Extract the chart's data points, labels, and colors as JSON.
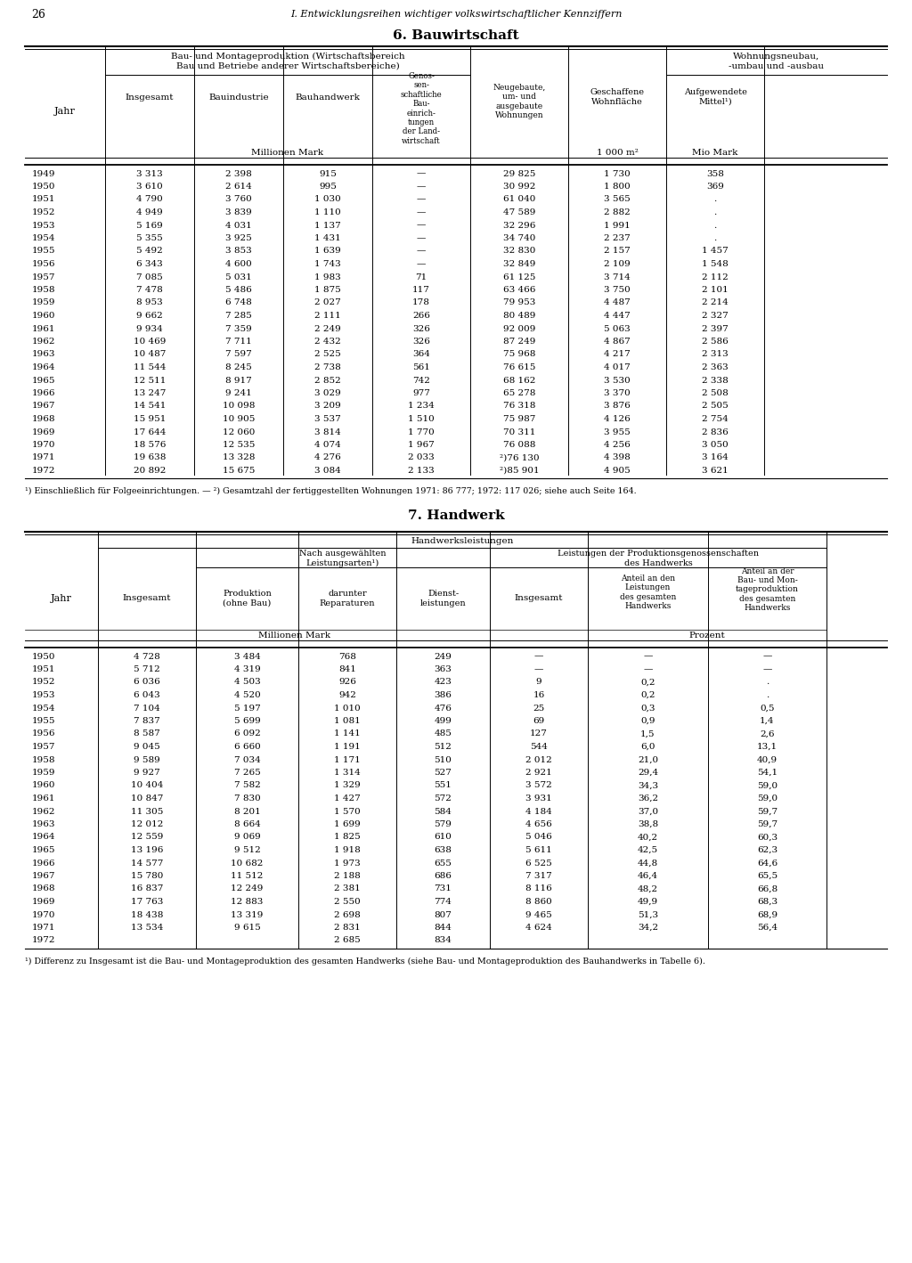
{
  "page_number": "26",
  "header_text": "I. Entwicklungsreihen wichtiger volkswirtschaftlicher Kennziffern",
  "section6_title": "6. Bauwirtschaft",
  "section7_title": "7. Handwerk",
  "bau_footnote": "¹) Einschließlich für Folgeeinrichtungen. — ²) Gesamtzahl der fertiggestellten Wohnungen 1971: 86 777; 1972: 117 026; siehe auch Seite 164.",
  "bau_data": [
    [
      "1949",
      "3 313",
      "2 398",
      "915",
      "—",
      "29 825",
      "1 730",
      "358"
    ],
    [
      "1950",
      "3 610",
      "2 614",
      "995",
      "—",
      "30 992",
      "1 800",
      "369"
    ],
    [
      "1951",
      "4 790",
      "3 760",
      "1 030",
      "—",
      "61 040",
      "3 565",
      "."
    ],
    [
      "1952",
      "4 949",
      "3 839",
      "1 110",
      "—",
      "47 589",
      "2 882",
      "."
    ],
    [
      "1953",
      "5 169",
      "4 031",
      "1 137",
      "—",
      "32 296",
      "1 991",
      "."
    ],
    [
      "1954",
      "5 355",
      "3 925",
      "1 431",
      "—",
      "34 740",
      "2 237",
      "."
    ],
    [
      "1955",
      "5 492",
      "3 853",
      "1 639",
      "—",
      "32 830",
      "2 157",
      "1 457"
    ],
    [
      "1956",
      "6 343",
      "4 600",
      "1 743",
      "—",
      "32 849",
      "2 109",
      "1 548"
    ],
    [
      "1957",
      "7 085",
      "5 031",
      "1 983",
      "71",
      "61 125",
      "3 714",
      "2 112"
    ],
    [
      "1958",
      "7 478",
      "5 486",
      "1 875",
      "117",
      "63 466",
      "3 750",
      "2 101"
    ],
    [
      "1959",
      "8 953",
      "6 748",
      "2 027",
      "178",
      "79 953",
      "4 487",
      "2 214"
    ],
    [
      "1960",
      "9 662",
      "7 285",
      "2 111",
      "266",
      "80 489",
      "4 447",
      "2 327"
    ],
    [
      "1961",
      "9 934",
      "7 359",
      "2 249",
      "326",
      "92 009",
      "5 063",
      "2 397"
    ],
    [
      "1962",
      "10 469",
      "7 711",
      "2 432",
      "326",
      "87 249",
      "4 867",
      "2 586"
    ],
    [
      "1963",
      "10 487",
      "7 597",
      "2 525",
      "364",
      "75 968",
      "4 217",
      "2 313"
    ],
    [
      "1964",
      "11 544",
      "8 245",
      "2 738",
      "561",
      "76 615",
      "4 017",
      "2 363"
    ],
    [
      "1965",
      "12 511",
      "8 917",
      "2 852",
      "742",
      "68 162",
      "3 530",
      "2 338"
    ],
    [
      "1966",
      "13 247",
      "9 241",
      "3 029",
      "977",
      "65 278",
      "3 370",
      "2 508"
    ],
    [
      "1967",
      "14 541",
      "10 098",
      "3 209",
      "1 234",
      "76 318",
      "3 876",
      "2 505"
    ],
    [
      "1968",
      "15 951",
      "10 905",
      "3 537",
      "1 510",
      "75 987",
      "4 126",
      "2 754"
    ],
    [
      "1969",
      "17 644",
      "12 060",
      "3 814",
      "1 770",
      "70 311",
      "3 955",
      "2 836"
    ],
    [
      "1970",
      "18 576",
      "12 535",
      "4 074",
      "1 967",
      "76 088",
      "4 256",
      "3 050"
    ],
    [
      "1971",
      "19 638",
      "13 328",
      "4 276",
      "2 033",
      "²)76 130",
      "4 398",
      "3 164"
    ],
    [
      "1972",
      "20 892",
      "15 675",
      "3 084",
      "2 133",
      "²)85 901",
      "4 905",
      "3 621"
    ]
  ],
  "hw_footnote": "¹) Differenz zu Insgesamt ist die Bau- und Montageproduktion des gesamten Handwerks (siehe Bau- und Montageproduktion des Bauhandwerks in Tabelle 6).",
  "hw_data": [
    [
      "1950",
      "4 728",
      "3 484",
      "768",
      "249",
      "—",
      "—",
      "—"
    ],
    [
      "1951",
      "5 712",
      "4 319",
      "841",
      "363",
      "—",
      "—",
      "—"
    ],
    [
      "1952",
      "6 036",
      "4 503",
      "926",
      "423",
      "9",
      "0,2",
      "."
    ],
    [
      "1953",
      "6 043",
      "4 520",
      "942",
      "386",
      "16",
      "0,2",
      "."
    ],
    [
      "1954",
      "7 104",
      "5 197",
      "1 010",
      "476",
      "25",
      "0,3",
      "0,5"
    ],
    [
      "1955",
      "7 837",
      "5 699",
      "1 081",
      "499",
      "69",
      "0,9",
      "1,4"
    ],
    [
      "1956",
      "8 587",
      "6 092",
      "1 141",
      "485",
      "127",
      "1,5",
      "2,6"
    ],
    [
      "1957",
      "9 045",
      "6 660",
      "1 191",
      "512",
      "544",
      "6,0",
      "13,1"
    ],
    [
      "1958",
      "9 589",
      "7 034",
      "1 171",
      "510",
      "2 012",
      "21,0",
      "40,9"
    ],
    [
      "1959",
      "9 927",
      "7 265",
      "1 314",
      "527",
      "2 921",
      "29,4",
      "54,1"
    ],
    [
      "1960",
      "10 404",
      "7 582",
      "1 329",
      "551",
      "3 572",
      "34,3",
      "59,0"
    ],
    [
      "1961",
      "10 847",
      "7 830",
      "1 427",
      "572",
      "3 931",
      "36,2",
      "59,0"
    ],
    [
      "1962",
      "11 305",
      "8 201",
      "1 570",
      "584",
      "4 184",
      "37,0",
      "59,7"
    ],
    [
      "1963",
      "12 012",
      "8 664",
      "1 699",
      "579",
      "4 656",
      "38,8",
      "59,7"
    ],
    [
      "1964",
      "12 559",
      "9 069",
      "1 825",
      "610",
      "5 046",
      "40,2",
      "60,3"
    ],
    [
      "1965",
      "13 196",
      "9 512",
      "1 918",
      "638",
      "5 611",
      "42,5",
      "62,3"
    ],
    [
      "1966",
      "14 577",
      "10 682",
      "1 973",
      "655",
      "6 525",
      "44,8",
      "64,6"
    ],
    [
      "1967",
      "15 780",
      "11 512",
      "2 188",
      "686",
      "7 317",
      "46,4",
      "65,5"
    ],
    [
      "1968",
      "16 837",
      "12 249",
      "2 381",
      "731",
      "8 116",
      "48,2",
      "66,8"
    ],
    [
      "1969",
      "17 763",
      "12 883",
      "2 550",
      "774",
      "8 860",
      "49,9",
      "68,3"
    ],
    [
      "1970",
      "18 438",
      "13 319",
      "2 698",
      "807",
      "9 465",
      "51,3",
      "68,9"
    ],
    [
      "1971",
      "13 534",
      "9 615",
      "2 831",
      "844",
      "4 624",
      "34,2",
      "56,4"
    ],
    [
      "1972",
      "",
      "",
      "2 685",
      "834",
      "",
      "",
      ""
    ]
  ]
}
